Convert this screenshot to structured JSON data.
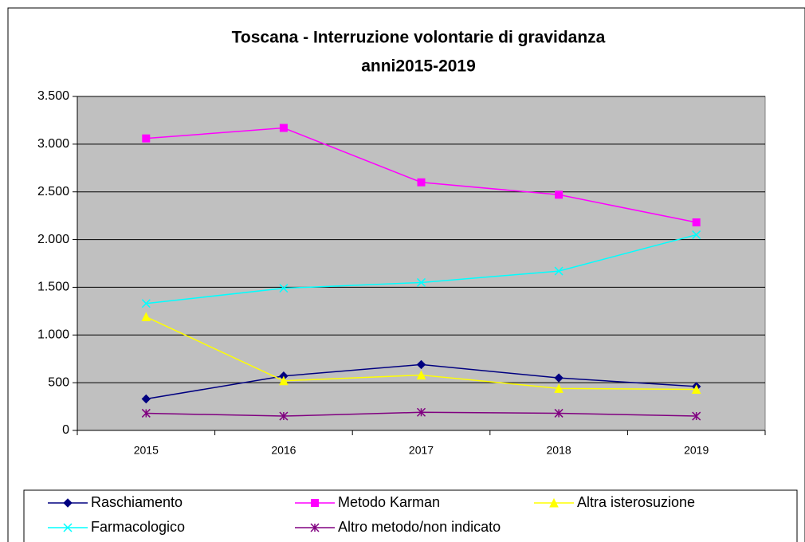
{
  "chart_data": {
    "type": "line",
    "title": [
      "Toscana - Interruzione volontarie di gravidanza",
      "anni2015-2019"
    ],
    "categories": [
      "2015",
      "2016",
      "2017",
      "2018",
      "2019"
    ],
    "series": [
      {
        "name": "Raschiamento",
        "color": "#000080",
        "marker": "diamond",
        "values": [
          330,
          570,
          690,
          550,
          460
        ]
      },
      {
        "name": "Metodo Karman",
        "color": "#ff00ff",
        "marker": "square",
        "values": [
          3060,
          3170,
          2600,
          2470,
          2180
        ]
      },
      {
        "name": "Altra isterosuzione",
        "color": "#ffff00",
        "marker": "triangle",
        "values": [
          1190,
          520,
          580,
          440,
          430
        ]
      },
      {
        "name": "Farmacologico",
        "color": "#00ffff",
        "marker": "x",
        "values": [
          1330,
          1490,
          1550,
          1670,
          2050
        ]
      },
      {
        "name": "Altro metodo/non indicato",
        "color": "#800080",
        "marker": "asterisk",
        "values": [
          180,
          150,
          190,
          180,
          150
        ]
      }
    ],
    "ylim": [
      0,
      3500
    ],
    "yticks": [
      0,
      500,
      {
        "value": 1000,
        "label": "1.000"
      },
      {
        "value": 1500,
        "label": "1.500"
      },
      {
        "value": 2000,
        "label": "2.000"
      },
      {
        "value": 2500,
        "label": "2.500"
      },
      {
        "value": 3000,
        "label": "3.000"
      },
      {
        "value": 3500,
        "label": "3.500"
      }
    ],
    "grid": true,
    "legend": "bottom"
  }
}
